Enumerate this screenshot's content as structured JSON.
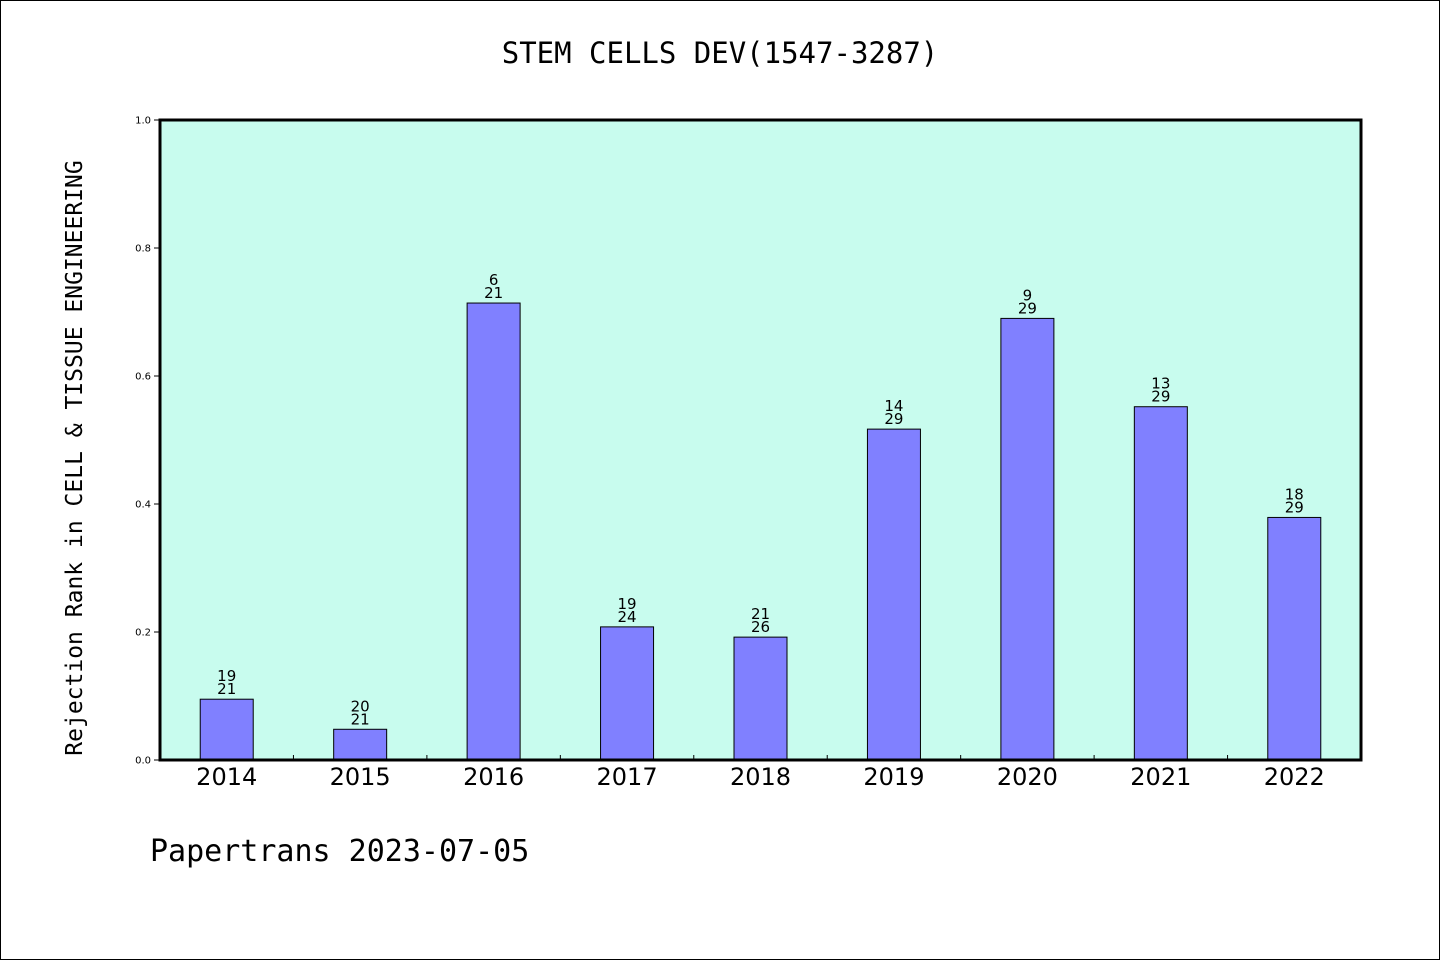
{
  "page": {
    "title": "STEM CELLS DEV(1547-3287)",
    "footer": "Papertrans 2023-07-05"
  },
  "colors": {
    "plot_background": "#c8fcee",
    "bar_fill": "#8080ff",
    "bar_stroke": "#000000",
    "axis": "#000000"
  },
  "chart_data": {
    "type": "bar",
    "title": "STEM CELLS DEV(1547-3287)",
    "xlabel": "",
    "ylabel": "Rejection Rank in CELL & TISSUE ENGINEERING",
    "ylim": [
      0,
      1.0
    ],
    "yticks": [
      "0.0",
      "0.2",
      "0.4",
      "0.6",
      "0.8",
      "1.0"
    ],
    "grid": false,
    "categories": [
      "2014",
      "2015",
      "2016",
      "2017",
      "2018",
      "2019",
      "2020",
      "2021",
      "2022"
    ],
    "values": [
      0.095,
      0.048,
      0.714,
      0.208,
      0.192,
      0.517,
      0.69,
      0.552,
      0.379
    ],
    "annotations": [
      {
        "top": "19",
        "bottom": "21"
      },
      {
        "top": "20",
        "bottom": "21"
      },
      {
        "top": "6",
        "bottom": "21"
      },
      {
        "top": "19",
        "bottom": "24"
      },
      {
        "top": "21",
        "bottom": "26"
      },
      {
        "top": "14",
        "bottom": "29"
      },
      {
        "top": "9",
        "bottom": "29"
      },
      {
        "top": "13",
        "bottom": "29"
      },
      {
        "top": "18",
        "bottom": "29"
      }
    ]
  }
}
